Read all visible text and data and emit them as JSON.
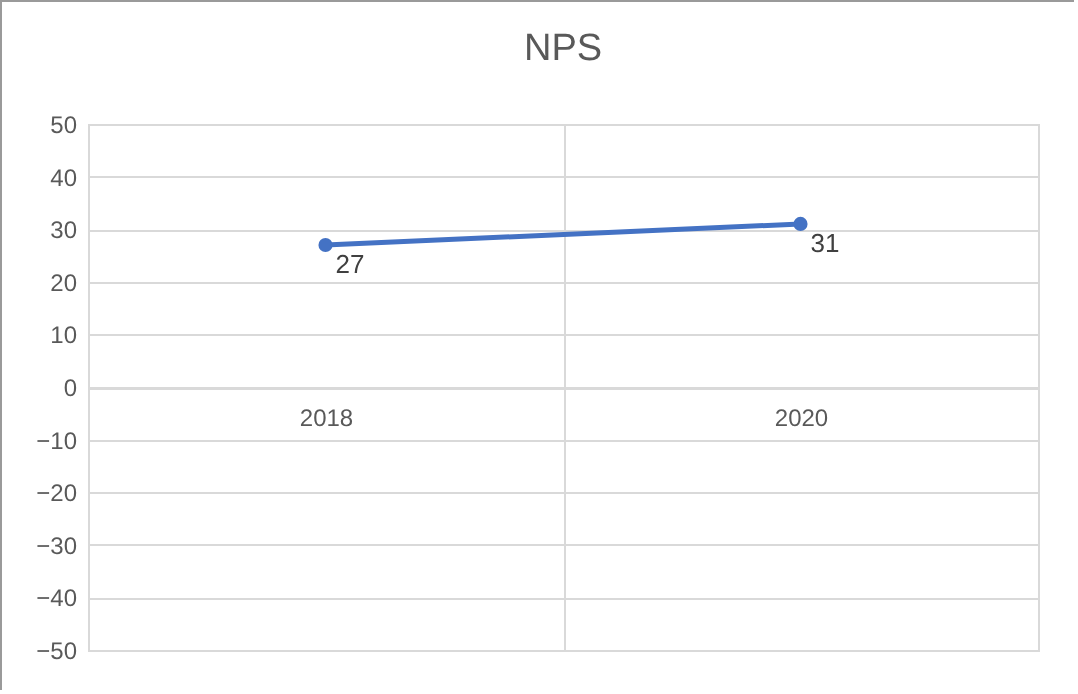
{
  "chart_data": {
    "type": "line",
    "title": "NPS",
    "categories": [
      "2018",
      "2020"
    ],
    "series": [
      {
        "color": "#4472c4",
        "values": [
          27,
          31
        ]
      }
    ],
    "ylim": [
      -50,
      50
    ],
    "yticks": [
      -50,
      -40,
      -30,
      -20,
      -10,
      0,
      10,
      20,
      30,
      40,
      50
    ],
    "grid": true,
    "marker": "circle",
    "data_labels": true,
    "line_style": "solid"
  }
}
